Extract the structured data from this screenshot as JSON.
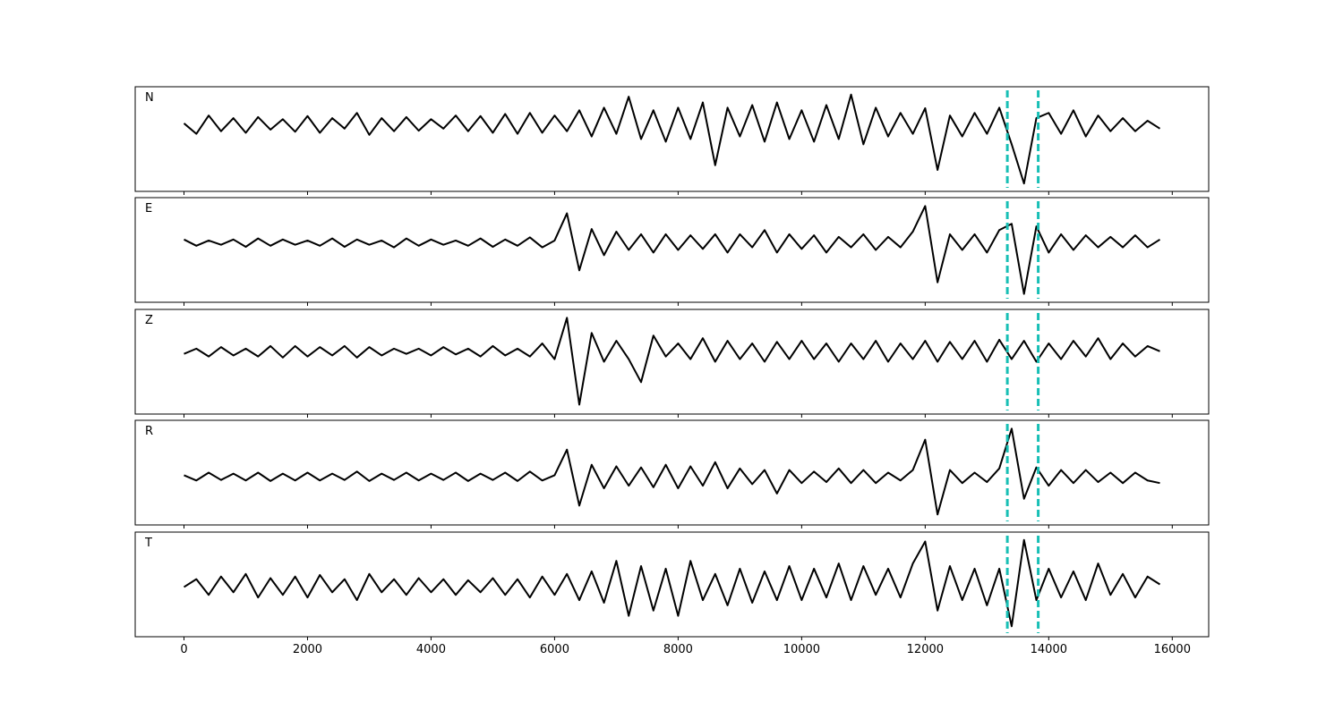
{
  "chart_data": [
    {
      "type": "line",
      "title": "N",
      "color": "#000000",
      "vline_color": "#17bfb5",
      "vlines": [
        13330,
        13830
      ],
      "xlim": [
        -790,
        16590
      ],
      "ylim": [
        -1,
        1
      ],
      "xticks": [
        0,
        2000,
        4000,
        6000,
        8000,
        10000,
        12000,
        14000,
        16000
      ],
      "x": [
        0,
        200,
        400,
        600,
        800,
        1000,
        1200,
        1400,
        1600,
        1800,
        2000,
        2200,
        2400,
        2600,
        2800,
        3000,
        3200,
        3400,
        3600,
        3800,
        4000,
        4200,
        4400,
        4600,
        4800,
        5000,
        5200,
        5400,
        5600,
        5800,
        6000,
        6200,
        6400,
        6600,
        6800,
        7000,
        7200,
        7400,
        7600,
        7800,
        8000,
        8200,
        8400,
        8600,
        8800,
        9000,
        9200,
        9400,
        9600,
        9800,
        10000,
        10200,
        10400,
        10600,
        10800,
        11000,
        11200,
        11400,
        11600,
        11800,
        12000,
        12200,
        12400,
        12600,
        12800,
        13000,
        13200,
        13400,
        13600,
        13800,
        14000,
        14200,
        14400,
        14600,
        14800,
        15000,
        15200,
        15400,
        15600,
        15800
      ],
      "values": [
        0.3,
        0.1,
        0.45,
        0.15,
        0.4,
        0.12,
        0.42,
        0.18,
        0.38,
        0.14,
        0.44,
        0.12,
        0.4,
        0.2,
        0.5,
        0.08,
        0.4,
        0.15,
        0.42,
        0.16,
        0.38,
        0.2,
        0.45,
        0.15,
        0.44,
        0.12,
        0.48,
        0.1,
        0.5,
        0.12,
        0.45,
        0.15,
        0.55,
        0.05,
        0.6,
        0.1,
        0.81,
        0.0,
        0.55,
        -0.05,
        0.6,
        0.0,
        0.7,
        -0.5,
        0.6,
        0.05,
        0.65,
        -0.05,
        0.7,
        0.0,
        0.55,
        -0.05,
        0.65,
        0.0,
        0.85,
        -0.1,
        0.6,
        0.05,
        0.5,
        0.1,
        0.59,
        -0.59,
        0.45,
        0.05,
        0.5,
        0.1,
        0.6,
        -0.1,
        -0.85,
        0.4,
        0.5,
        0.1,
        0.55,
        0.05,
        0.45,
        0.15,
        0.4,
        0.15,
        0.35,
        0.2
      ]
    },
    {
      "type": "line",
      "title": "E",
      "color": "#000000",
      "vline_color": "#17bfb5",
      "vlines": [
        13330,
        13830
      ],
      "xlim": [
        -790,
        16590
      ],
      "ylim": [
        -1,
        1
      ],
      "xticks": [
        0,
        2000,
        4000,
        6000,
        8000,
        10000,
        12000,
        14000,
        16000
      ],
      "x": [
        0,
        200,
        400,
        600,
        800,
        1000,
        1200,
        1400,
        1600,
        1800,
        2000,
        2200,
        2400,
        2600,
        2800,
        3000,
        3200,
        3400,
        3600,
        3800,
        4000,
        4200,
        4400,
        4600,
        4800,
        5000,
        5200,
        5400,
        5600,
        5800,
        6000,
        6200,
        6400,
        6600,
        6800,
        7000,
        7200,
        7400,
        7600,
        7800,
        8000,
        8200,
        8400,
        8600,
        8800,
        9000,
        9200,
        9400,
        9600,
        9800,
        10000,
        10200,
        10400,
        10600,
        10800,
        11000,
        11200,
        11400,
        11600,
        11800,
        12000,
        12200,
        12400,
        12600,
        12800,
        13000,
        13200,
        13400,
        13600,
        13800,
        14000,
        14200,
        14400,
        14600,
        14800,
        15000,
        15200,
        15400,
        15600,
        15800
      ],
      "values": [
        0.2,
        0.08,
        0.18,
        0.1,
        0.2,
        0.06,
        0.22,
        0.08,
        0.2,
        0.1,
        0.18,
        0.08,
        0.22,
        0.06,
        0.2,
        0.1,
        0.18,
        0.05,
        0.22,
        0.08,
        0.2,
        0.1,
        0.18,
        0.08,
        0.22,
        0.06,
        0.2,
        0.08,
        0.24,
        0.05,
        0.18,
        0.7,
        -0.39,
        0.4,
        -0.1,
        0.35,
        0.0,
        0.3,
        -0.05,
        0.3,
        0.0,
        0.28,
        0.02,
        0.3,
        -0.05,
        0.3,
        0.05,
        0.38,
        -0.05,
        0.3,
        0.02,
        0.28,
        -0.05,
        0.25,
        0.05,
        0.3,
        0.0,
        0.25,
        0.05,
        0.35,
        0.84,
        -0.62,
        0.3,
        0.0,
        0.3,
        -0.05,
        0.38,
        0.5,
        -0.84,
        0.45,
        -0.05,
        0.3,
        0.0,
        0.28,
        0.05,
        0.25,
        0.05,
        0.28,
        0.05,
        0.2
      ]
    },
    {
      "type": "line",
      "title": "Z",
      "color": "#000000",
      "vline_color": "#17bfb5",
      "vlines": [
        13330,
        13830
      ],
      "xlim": [
        -790,
        16590
      ],
      "ylim": [
        -1,
        1
      ],
      "xticks": [
        0,
        2000,
        4000,
        6000,
        8000,
        10000,
        12000,
        14000,
        16000
      ],
      "x": [
        0,
        200,
        400,
        600,
        800,
        1000,
        1200,
        1400,
        1600,
        1800,
        2000,
        2200,
        2400,
        2600,
        2800,
        3000,
        3200,
        3400,
        3600,
        3800,
        4000,
        4200,
        4400,
        4600,
        4800,
        5000,
        5200,
        5400,
        5600,
        5800,
        6000,
        6200,
        6400,
        6600,
        6800,
        7000,
        7200,
        7400,
        7600,
        7800,
        8000,
        8200,
        8400,
        8600,
        8800,
        9000,
        9200,
        9400,
        9600,
        9800,
        10000,
        10200,
        10400,
        10600,
        10800,
        11000,
        11200,
        11400,
        11600,
        11800,
        12000,
        12200,
        12400,
        12600,
        12800,
        13000,
        13200,
        13400,
        13600,
        13800,
        14000,
        14200,
        14400,
        14600,
        14800,
        15000,
        15200,
        15400,
        15600,
        15800
      ],
      "values": [
        0.15,
        0.25,
        0.1,
        0.28,
        0.12,
        0.25,
        0.1,
        0.3,
        0.08,
        0.3,
        0.1,
        0.28,
        0.12,
        0.3,
        0.08,
        0.28,
        0.12,
        0.25,
        0.15,
        0.25,
        0.12,
        0.28,
        0.14,
        0.25,
        0.1,
        0.3,
        0.12,
        0.25,
        0.1,
        0.35,
        0.05,
        0.84,
        -0.82,
        0.55,
        0.0,
        0.4,
        0.05,
        -0.39,
        0.5,
        0.1,
        0.35,
        0.05,
        0.45,
        0.0,
        0.4,
        0.05,
        0.35,
        0.0,
        0.38,
        0.05,
        0.4,
        0.05,
        0.35,
        0.0,
        0.35,
        0.05,
        0.4,
        0.0,
        0.35,
        0.05,
        0.4,
        0.0,
        0.38,
        0.05,
        0.4,
        0.0,
        0.42,
        0.05,
        0.4,
        0.0,
        0.35,
        0.05,
        0.4,
        0.1,
        0.45,
        0.05,
        0.35,
        0.1,
        0.3,
        0.2
      ]
    },
    {
      "type": "line",
      "title": "R",
      "color": "#000000",
      "vline_color": "#17bfb5",
      "vlines": [
        13330,
        13830
      ],
      "xlim": [
        -790,
        16590
      ],
      "ylim": [
        -1,
        1
      ],
      "xticks": [
        0,
        2000,
        4000,
        6000,
        8000,
        10000,
        12000,
        14000,
        16000
      ],
      "x": [
        0,
        200,
        400,
        600,
        800,
        1000,
        1200,
        1400,
        1600,
        1800,
        2000,
        2200,
        2400,
        2600,
        2800,
        3000,
        3200,
        3400,
        3600,
        3800,
        4000,
        4200,
        4400,
        4600,
        4800,
        5000,
        5200,
        5400,
        5600,
        5800,
        6000,
        6200,
        6400,
        6600,
        6800,
        7000,
        7200,
        7400,
        7600,
        7800,
        8000,
        8200,
        8400,
        8600,
        8800,
        9000,
        9200,
        9400,
        9600,
        9800,
        10000,
        10200,
        10400,
        10600,
        10800,
        11000,
        11200,
        11400,
        11600,
        11800,
        12000,
        12200,
        12400,
        12600,
        12800,
        13000,
        13200,
        13400,
        13600,
        13800,
        14000,
        14200,
        14400,
        14600,
        14800,
        15000,
        15200,
        15400,
        15600,
        15800
      ],
      "values": [
        -0.05,
        -0.15,
        0.0,
        -0.14,
        -0.02,
        -0.15,
        0.0,
        -0.16,
        -0.02,
        -0.15,
        0.0,
        -0.15,
        -0.02,
        -0.14,
        0.02,
        -0.16,
        -0.02,
        -0.14,
        0.0,
        -0.15,
        -0.02,
        -0.14,
        0.0,
        -0.16,
        -0.02,
        -0.14,
        0.0,
        -0.16,
        0.02,
        -0.15,
        -0.05,
        0.44,
        -0.63,
        0.15,
        -0.3,
        0.12,
        -0.25,
        0.1,
        -0.28,
        0.15,
        -0.3,
        0.12,
        -0.25,
        0.2,
        -0.3,
        0.08,
        -0.22,
        0.05,
        -0.4,
        0.05,
        -0.2,
        0.02,
        -0.18,
        0.08,
        -0.2,
        0.05,
        -0.2,
        0.0,
        -0.15,
        0.05,
        0.63,
        -0.8,
        0.05,
        -0.2,
        0.0,
        -0.18,
        0.08,
        0.84,
        -0.5,
        0.1,
        -0.25,
        0.05,
        -0.2,
        0.05,
        -0.18,
        0.0,
        -0.2,
        0.0,
        -0.15,
        -0.2
      ]
    },
    {
      "type": "line",
      "title": "T",
      "color": "#000000",
      "vline_color": "#17bfb5",
      "vlines": [
        13330,
        13830
      ],
      "xlim": [
        -790,
        16590
      ],
      "ylim": [
        -1,
        1
      ],
      "xticks": [
        0,
        2000,
        4000,
        6000,
        8000,
        10000,
        12000,
        14000,
        16000
      ],
      "x": [
        0,
        200,
        400,
        600,
        800,
        1000,
        1200,
        1400,
        1600,
        1800,
        2000,
        2200,
        2400,
        2600,
        2800,
        3000,
        3200,
        3400,
        3600,
        3800,
        4000,
        4200,
        4400,
        4600,
        4800,
        5000,
        5200,
        5400,
        5600,
        5800,
        6000,
        6200,
        6400,
        6600,
        6800,
        7000,
        7200,
        7400,
        7600,
        7800,
        8000,
        8200,
        8400,
        8600,
        8800,
        9000,
        9200,
        9400,
        9600,
        9800,
        10000,
        10200,
        10400,
        10600,
        10800,
        11000,
        11200,
        11400,
        11600,
        11800,
        12000,
        12200,
        12400,
        12600,
        12800,
        13000,
        13200,
        13400,
        13600,
        13800,
        14000,
        14200,
        14400,
        14600,
        14800,
        15000,
        15200,
        15400,
        15600,
        15800
      ],
      "values": [
        -0.05,
        0.1,
        -0.2,
        0.15,
        -0.15,
        0.2,
        -0.25,
        0.12,
        -0.2,
        0.15,
        -0.25,
        0.18,
        -0.15,
        0.1,
        -0.3,
        0.2,
        -0.15,
        0.1,
        -0.2,
        0.12,
        -0.15,
        0.1,
        -0.2,
        0.08,
        -0.15,
        0.12,
        -0.2,
        0.1,
        -0.25,
        0.15,
        -0.2,
        0.2,
        -0.3,
        0.25,
        -0.35,
        0.45,
        -0.6,
        0.35,
        -0.5,
        0.3,
        -0.6,
        0.45,
        -0.3,
        0.2,
        -0.4,
        0.3,
        -0.35,
        0.25,
        -0.3,
        0.35,
        -0.3,
        0.3,
        -0.25,
        0.4,
        -0.3,
        0.35,
        -0.2,
        0.3,
        -0.25,
        0.4,
        0.82,
        -0.5,
        0.35,
        -0.3,
        0.3,
        -0.4,
        0.3,
        -0.8,
        0.85,
        -0.3,
        0.3,
        -0.25,
        0.25,
        -0.3,
        0.4,
        -0.2,
        0.2,
        -0.25,
        0.15,
        0.0
      ]
    }
  ]
}
